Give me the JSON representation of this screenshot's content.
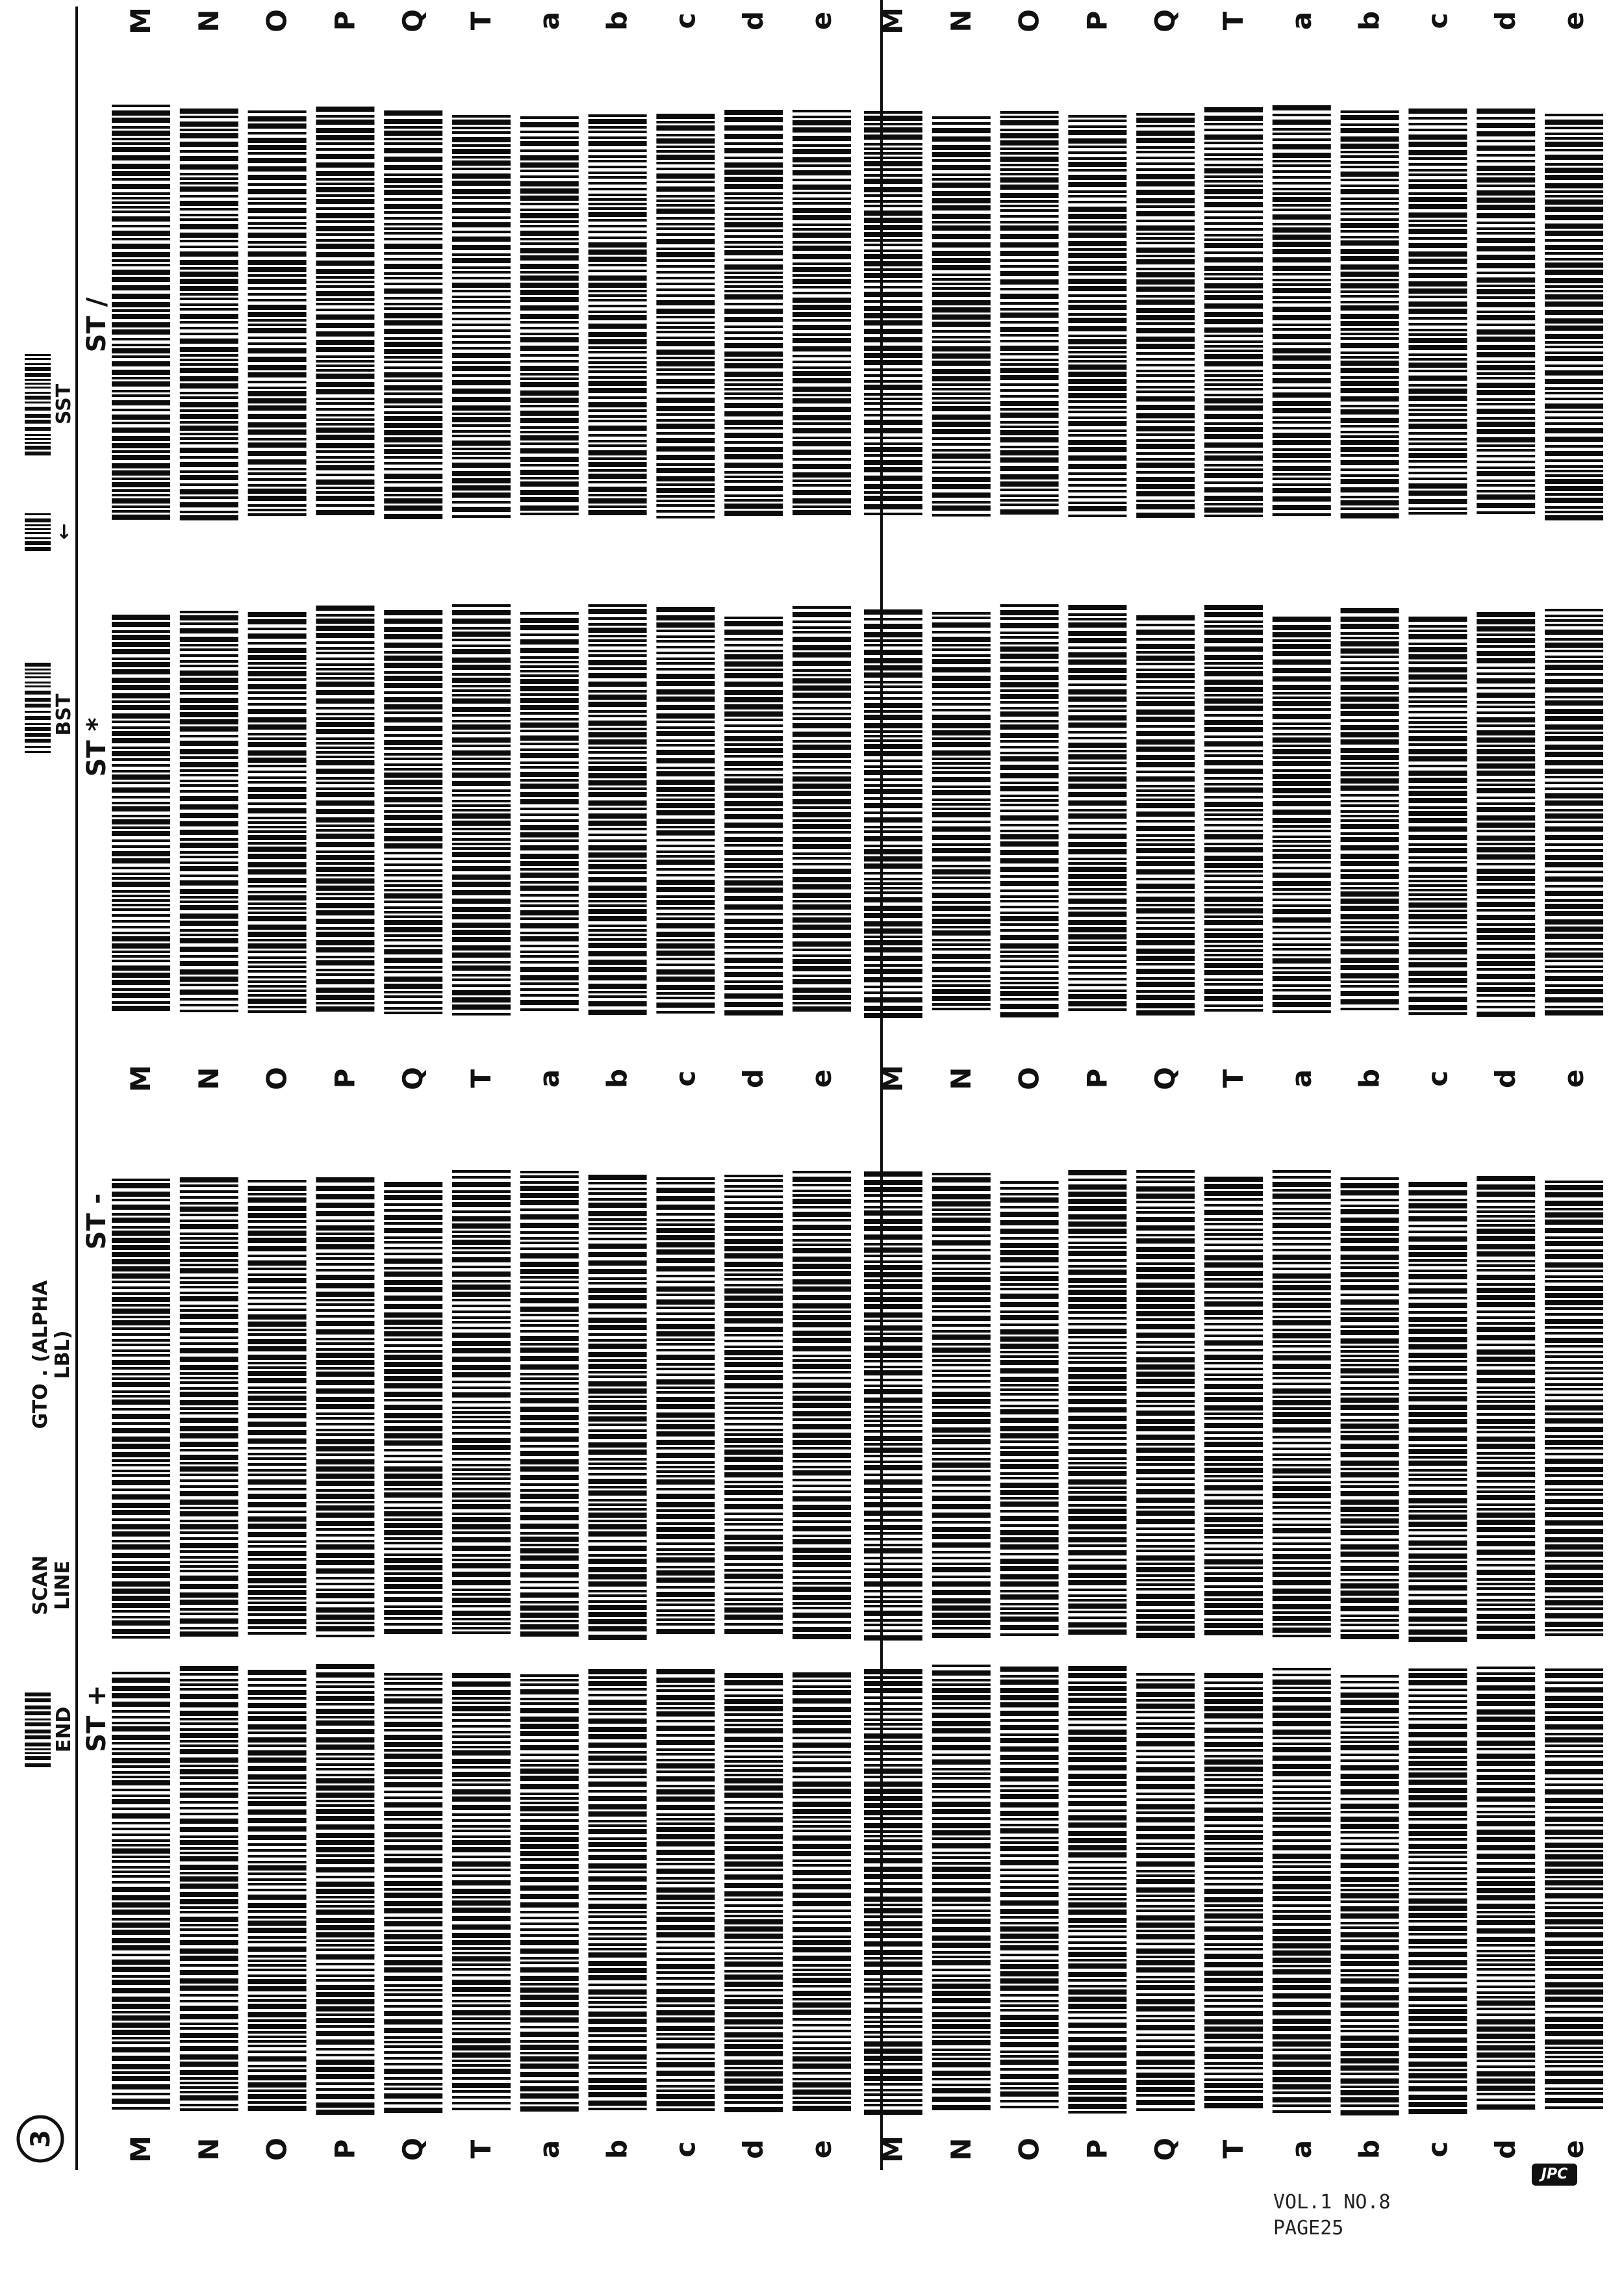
{
  "page_number": "3",
  "row_labels_left": [
    "M",
    "N",
    "O",
    "P",
    "Q",
    "T",
    "a",
    "b",
    "c",
    "d",
    "e",
    "M",
    "N",
    "O",
    "P",
    "Q",
    "T",
    "a",
    "b",
    "c",
    "d",
    "e"
  ],
  "row_labels_middle": [
    "M",
    "N",
    "O",
    "P",
    "Q",
    "T",
    "a",
    "b",
    "c",
    "d",
    "e",
    "M",
    "N",
    "O",
    "P",
    "Q",
    "T",
    "a",
    "b",
    "c",
    "d",
    "e"
  ],
  "row_labels_right": [
    "M",
    "N",
    "O",
    "P",
    "Q",
    "T",
    "a",
    "b",
    "c",
    "d",
    "e",
    "M",
    "N",
    "O",
    "P",
    "Q",
    "T",
    "a",
    "b",
    "c",
    "d",
    "e"
  ],
  "blocks": [
    {
      "caption": "ST +"
    },
    {
      "caption": "ST -"
    },
    {
      "caption": "ST *"
    },
    {
      "caption": "ST /"
    }
  ],
  "header_barcodes": [
    {
      "label": "END"
    },
    {
      "label": "SCAN LINE"
    },
    {
      "label": "GTO . (ALPHA LBL)"
    },
    {
      "label": "BST"
    },
    {
      "label": "←"
    },
    {
      "label": "SST"
    }
  ],
  "footer": {
    "volume": "VOL.1 NO.8",
    "page": "PAGE25"
  },
  "logo": "JPC"
}
